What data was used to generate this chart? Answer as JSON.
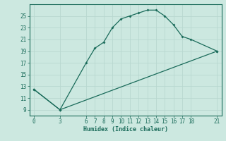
{
  "title": "",
  "xlabel": "Humidex (Indice chaleur)",
  "bg_color": "#cce8e0",
  "line_color": "#1a6b5a",
  "grid_color": "#b8d8d0",
  "line1_x": [
    0,
    3,
    6,
    7,
    8,
    9,
    10,
    11,
    12,
    13,
    14,
    15,
    16,
    17,
    18,
    21
  ],
  "line1_y": [
    12.5,
    9.0,
    17.0,
    19.5,
    20.5,
    23.0,
    24.5,
    25.0,
    25.5,
    26.0,
    26.0,
    25.0,
    23.5,
    21.5,
    21.0,
    19.0
  ],
  "line2_x": [
    0,
    3,
    21
  ],
  "line2_y": [
    12.5,
    9.0,
    19.0
  ],
  "xticks": [
    0,
    3,
    6,
    7,
    8,
    9,
    10,
    11,
    12,
    13,
    14,
    15,
    16,
    17,
    18,
    21
  ],
  "yticks": [
    9,
    11,
    13,
    15,
    17,
    19,
    21,
    23,
    25
  ],
  "xlim": [
    -0.5,
    21.5
  ],
  "ylim": [
    8.0,
    27.0
  ],
  "xlabel_fontsize": 6,
  "tick_fontsize": 5.5,
  "marker_size": 2.0,
  "linewidth": 0.9
}
